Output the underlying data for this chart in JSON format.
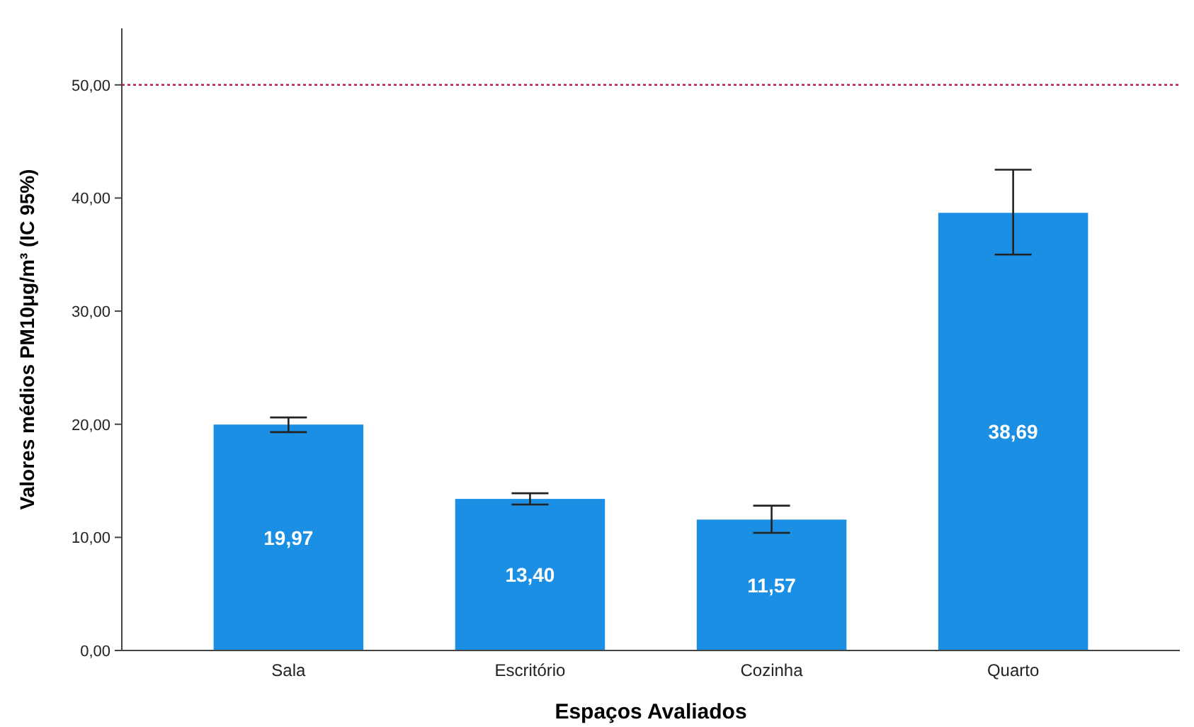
{
  "chart_data": {
    "type": "bar",
    "xlabel": "Espaços Avaliados",
    "ylabel": "Valores médios PM10μg/m³ (IC 95%)",
    "categories": [
      "Sala",
      "Escritório",
      "Cozinha",
      "Quarto"
    ],
    "values": [
      19.97,
      13.4,
      11.57,
      38.69
    ],
    "value_labels": [
      "19,97",
      "13,40",
      "11,57",
      "38,69"
    ],
    "errors": [
      [
        19.3,
        20.6
      ],
      [
        12.9,
        13.9
      ],
      [
        10.4,
        12.8
      ],
      [
        35.0,
        42.5
      ]
    ],
    "color": "#1a8fe3",
    "ylim": [
      0,
      55
    ],
    "yticks": [
      {
        "value": 0,
        "label": "0,00"
      },
      {
        "value": 10,
        "label": "10,00"
      },
      {
        "value": 20,
        "label": "20,00"
      },
      {
        "value": 30,
        "label": "30,00"
      },
      {
        "value": 40,
        "label": "40,00"
      },
      {
        "value": 50,
        "label": "50,00"
      }
    ],
    "ref_lines": [
      {
        "axis": "y",
        "value": 50,
        "color": "#c2185b",
        "line_style": "dotted"
      }
    ],
    "grid": false
  }
}
